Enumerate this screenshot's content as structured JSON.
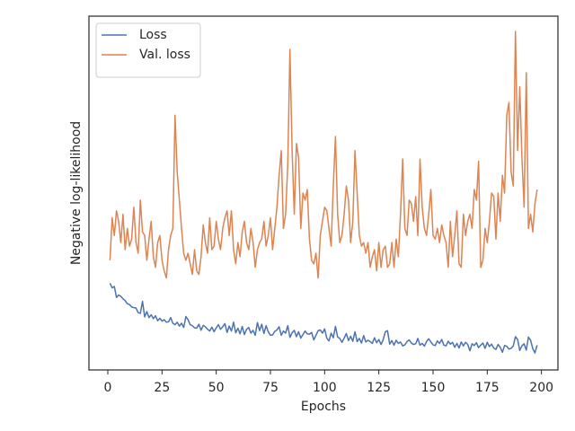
{
  "chart_data": {
    "type": "line",
    "xlabel": "Epochs",
    "ylabel": "Negative log-likelihood",
    "xlim": [
      -8.7,
      207.6
    ],
    "ylim": [
      0,
      100
    ],
    "xticks": [
      0,
      25,
      50,
      75,
      100,
      125,
      150,
      175,
      200
    ],
    "legend": "upper left",
    "x": [
      1,
      2,
      3,
      4,
      5,
      6,
      7,
      8,
      9,
      10,
      11,
      12,
      13,
      14,
      15,
      16,
      17,
      18,
      19,
      20,
      21,
      22,
      23,
      24,
      25,
      26,
      27,
      28,
      29,
      30,
      31,
      32,
      33,
      34,
      35,
      36,
      37,
      38,
      39,
      40,
      41,
      42,
      43,
      44,
      45,
      46,
      47,
      48,
      49,
      50,
      51,
      52,
      53,
      54,
      55,
      56,
      57,
      58,
      59,
      60,
      61,
      62,
      63,
      64,
      65,
      66,
      67,
      68,
      69,
      70,
      71,
      72,
      73,
      74,
      75,
      76,
      77,
      78,
      79,
      80,
      81,
      82,
      83,
      84,
      85,
      86,
      87,
      88,
      89,
      90,
      91,
      92,
      93,
      94,
      95,
      96,
      97,
      98,
      99,
      100,
      101,
      102,
      103,
      104,
      105,
      106,
      107,
      108,
      109,
      110,
      111,
      112,
      113,
      114,
      115,
      116,
      117,
      118,
      119,
      120,
      121,
      122,
      123,
      124,
      125,
      126,
      127,
      128,
      129,
      130,
      131,
      132,
      133,
      134,
      135,
      136,
      137,
      138,
      139,
      140,
      141,
      142,
      143,
      144,
      145,
      146,
      147,
      148,
      149,
      150,
      151,
      152,
      153,
      154,
      155,
      156,
      157,
      158,
      159,
      160,
      161,
      162,
      163,
      164,
      165,
      166,
      167,
      168,
      169,
      170,
      171,
      172,
      173,
      174,
      175,
      176,
      177,
      178,
      179,
      180,
      181,
      182,
      183,
      184,
      185,
      186,
      187,
      188,
      189,
      190,
      191,
      192,
      193,
      194,
      195,
      196,
      197,
      198
    ],
    "series": [
      {
        "name": "Loss",
        "color": "#4c72b0",
        "values": [
          24.5,
          23.2,
          23.6,
          20.5,
          21.2,
          20.8,
          20.1,
          19.6,
          18.7,
          18.5,
          17.8,
          17.6,
          17.5,
          16.2,
          16.0,
          19.4,
          15.0,
          16.5,
          14.8,
          15.6,
          14.5,
          15.3,
          13.9,
          14.6,
          13.8,
          14.2,
          13.5,
          13.6,
          14.8,
          13.2,
          12.8,
          13.5,
          12.4,
          13.2,
          12.0,
          15.1,
          14.2,
          12.8,
          12.5,
          11.9,
          11.8,
          12.9,
          11.2,
          12.6,
          12.2,
          11.5,
          11.0,
          12.1,
          10.8,
          11.9,
          12.8,
          11.5,
          12.2,
          13.1,
          10.6,
          12.4,
          11.0,
          13.5,
          10.5,
          11.8,
          10.2,
          12.3,
          10.0,
          11.5,
          12.0,
          10.4,
          11.2,
          9.8,
          13.4,
          11.1,
          12.9,
          10.3,
          12.5,
          10.8,
          9.8,
          9.9,
          10.9,
          11.3,
          12.2,
          9.8,
          11.0,
          10.4,
          12.5,
          9.2,
          10.5,
          11.2,
          9.4,
          10.8,
          9.0,
          10.0,
          11.0,
          10.2,
          10.1,
          10.6,
          8.5,
          9.8,
          11.1,
          11.3,
          10.4,
          11.6,
          9.0,
          8.2,
          10.4,
          9.1,
          12.3,
          9.3,
          8.9,
          7.8,
          9.0,
          10.3,
          8.3,
          9.5,
          8.1,
          10.8,
          8.0,
          8.9,
          7.6,
          9.7,
          7.9,
          8.4,
          8.0,
          7.5,
          9.1,
          7.7,
          8.6,
          7.2,
          8.5,
          10.8,
          11.1,
          7.3,
          8.3,
          7.0,
          8.4,
          7.5,
          7.9,
          6.8,
          7.1,
          8.0,
          8.5,
          7.6,
          7.2,
          7.4,
          8.9,
          7.0,
          7.5,
          6.7,
          8.0,
          8.8,
          7.9,
          7.1,
          6.9,
          8.2,
          7.5,
          8.6,
          7.0,
          6.8,
          8.1,
          7.3,
          7.8,
          6.4,
          7.5,
          6.2,
          7.9,
          6.8,
          7.8,
          7.2,
          5.4,
          7.4,
          6.9,
          7.7,
          6.3,
          7.0,
          7.6,
          6.1,
          7.8,
          6.6,
          7.3,
          6.2,
          5.8,
          7.2,
          6.4,
          5.0,
          6.9,
          6.7,
          5.9,
          6.1,
          6.8,
          9.4,
          8.6,
          5.5,
          6.8,
          7.4,
          5.6,
          9.3,
          8.4,
          6.0,
          4.8,
          7.0
        ]
      },
      {
        "name": "Val. loss",
        "color": "#dd8452",
        "values": [
          31,
          43,
          38,
          45,
          42,
          36,
          44,
          34,
          40,
          35,
          37,
          46,
          36,
          33,
          48,
          39,
          38,
          31,
          37,
          42,
          32,
          29,
          36,
          38,
          31,
          28,
          26,
          34,
          38,
          40,
          72,
          56,
          48,
          40,
          33,
          31,
          33,
          30,
          27,
          34,
          28,
          27,
          32,
          41,
          36,
          33,
          43,
          34,
          35,
          42,
          37,
          34,
          40,
          43,
          45,
          38,
          45,
          34,
          30,
          36,
          32,
          39,
          42,
          36,
          34,
          40,
          36,
          29,
          34,
          36,
          37,
          42,
          35,
          38,
          43,
          34,
          40,
          46,
          55,
          62,
          40,
          44,
          58,
          90.6,
          62,
          44,
          64,
          60,
          40,
          50,
          48,
          51,
          37,
          31,
          30,
          33,
          26,
          38,
          42,
          46,
          45,
          40,
          35,
          52,
          66,
          44,
          36,
          38,
          44,
          52,
          48,
          36,
          42,
          62,
          50,
          38,
          35,
          36,
          33,
          36,
          29,
          32,
          34,
          28,
          36,
          29,
          34,
          35,
          29,
          30,
          36,
          29,
          37,
          32,
          44,
          59.6,
          40,
          38,
          48,
          47,
          42,
          49,
          38,
          59.6,
          46,
          40,
          38,
          44,
          51,
          38,
          37,
          40,
          36,
          41,
          38,
          36,
          29,
          42,
          32,
          38,
          45,
          30,
          29,
          44,
          38,
          42,
          44,
          40,
          51,
          48,
          59,
          29,
          31,
          40,
          36,
          42,
          50,
          49,
          37,
          50,
          42,
          55,
          50,
          72,
          75.6,
          56,
          52,
          95.7,
          62,
          80,
          60,
          46,
          84,
          40,
          44,
          39,
          47,
          51
        ]
      }
    ]
  }
}
